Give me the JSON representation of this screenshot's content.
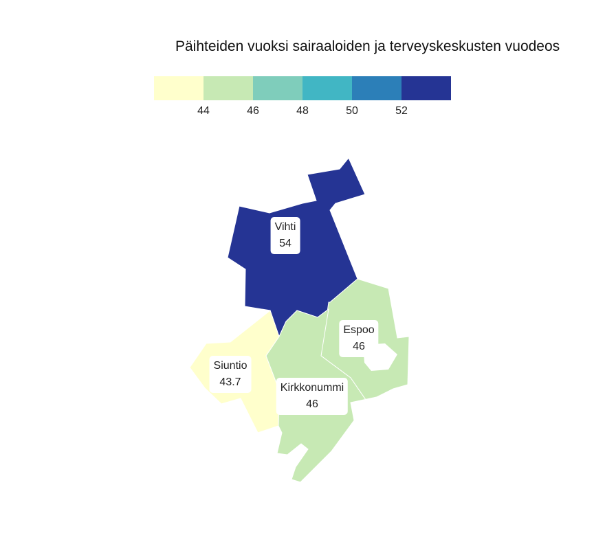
{
  "title": "Päihteiden vuoksi sairaaloiden ja terveyskeskusten vuodeos",
  "legend": {
    "colors": [
      "#ffffcc",
      "#c7e9b4",
      "#7fcdbb",
      "#41b6c4",
      "#2c7fb8",
      "#253494"
    ],
    "ticks": [
      "44",
      "46",
      "48",
      "50",
      "52"
    ]
  },
  "regions": [
    {
      "name": "Vihti",
      "value": "54",
      "color": "#253494"
    },
    {
      "name": "Espoo",
      "value": "46",
      "color": "#c7e9b4"
    },
    {
      "name": "Siuntio",
      "value": "43.7",
      "color": "#ffffcc"
    },
    {
      "name": "Kirkkonummi",
      "value": "46",
      "color": "#c7e9b4"
    }
  ]
}
